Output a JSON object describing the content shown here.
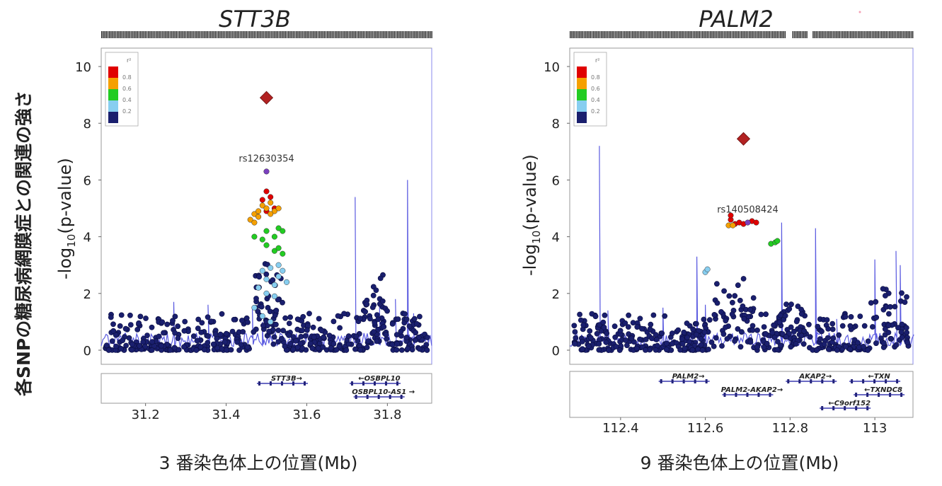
{
  "page_ylabel": "各SNPの糖尿病網膜症との関連の強さ",
  "chart_data": [
    {
      "type": "scatter",
      "title": "STT3B",
      "ylabel": "-log10(p-value)",
      "ylabel_sub_main": "-log",
      "ylabel_sub_sub": "10",
      "ylabel_sub_tail": "(p-value)",
      "xlabel": "3 番染色体上の位置(Mb)",
      "xlim": [
        31.09,
        31.91
      ],
      "ylim": [
        0,
        10.4
      ],
      "xticks": [
        31.2,
        31.4,
        31.6,
        31.8
      ],
      "xtick_labels": [
        "31.2",
        "31.4",
        "31.6",
        "31.8"
      ],
      "yticks": [
        0,
        2,
        4,
        6,
        8,
        10
      ],
      "ytick_labels": [
        "0",
        "2",
        "4",
        "6",
        "8",
        "10"
      ],
      "lead_snp": {
        "label": "rs12630354",
        "x": 31.5,
        "y": 8.9
      },
      "annotated_point": {
        "x": 31.5,
        "y": 6.3
      },
      "legend": {
        "title": "r²",
        "labels": [
          "0.8",
          "0.6",
          "0.4",
          "0.2"
        ],
        "position": "top-left"
      },
      "ld_colors": {
        "lead": "#b22222",
        "r08": "#e00000",
        "r06": "#f5a000",
        "r04": "#22cc22",
        "r02": "#87cef0",
        "r00": "#1a1f6e"
      },
      "series": [
        {
          "ld": "r08",
          "points": [
            [
              31.5,
              5.6
            ],
            [
              31.51,
              5.4
            ],
            [
              31.49,
              5.3
            ],
            [
              31.52,
              5.0
            ],
            [
              31.5,
              4.9
            ]
          ]
        },
        {
          "ld": "r06",
          "points": [
            [
              31.47,
              4.8
            ],
            [
              31.48,
              4.9
            ],
            [
              31.49,
              5.1
            ],
            [
              31.5,
              5.0
            ],
            [
              31.51,
              5.2
            ],
            [
              31.52,
              4.9
            ],
            [
              31.46,
              4.6
            ],
            [
              31.47,
              4.5
            ],
            [
              31.48,
              4.7
            ],
            [
              31.53,
              5.0
            ],
            [
              31.51,
              4.8
            ]
          ]
        },
        {
          "ld": "r04",
          "points": [
            [
              31.5,
              4.2
            ],
            [
              31.52,
              4.0
            ],
            [
              31.53,
              4.3
            ],
            [
              31.54,
              4.2
            ],
            [
              31.52,
              3.5
            ],
            [
              31.53,
              3.6
            ],
            [
              31.54,
              3.4
            ],
            [
              31.5,
              3.7
            ],
            [
              31.49,
              3.9
            ],
            [
              31.47,
              4.0
            ]
          ]
        },
        {
          "ld": "r02",
          "points": [
            [
              31.49,
              2.8
            ],
            [
              31.5,
              2.5
            ],
            [
              31.51,
              2.9
            ],
            [
              31.52,
              2.3
            ],
            [
              31.53,
              3.0
            ],
            [
              31.54,
              2.8
            ],
            [
              31.48,
              2.2
            ],
            [
              31.5,
              2.0
            ],
            [
              31.52,
              1.9
            ],
            [
              31.47,
              1.5
            ],
            [
              31.49,
              1.2
            ],
            [
              31.51,
              1.0
            ],
            [
              31.53,
              2.6
            ],
            [
              31.55,
              2.4
            ]
          ]
        }
      ],
      "recombination_peaks": [
        [
          31.27,
          1.7
        ],
        [
          31.355,
          1.6
        ],
        [
          31.465,
          1.5
        ],
        [
          31.49,
          1.0
        ],
        [
          31.72,
          5.4
        ],
        [
          31.78,
          1.9
        ],
        [
          31.82,
          1.8
        ],
        [
          31.85,
          6.0
        ],
        [
          31.865,
          1.3
        ]
      ]
    },
    {
      "type": "scatter",
      "title": "PALM2",
      "ylabel": "-log10(p-value)",
      "ylabel_sub_main": "-log",
      "ylabel_sub_sub": "10",
      "ylabel_sub_tail": "(p-value)",
      "xlabel": "9 番染色体上の位置(Mb)",
      "xlim": [
        112.28,
        113.09
      ],
      "ylim": [
        0,
        10.4
      ],
      "xticks": [
        112.4,
        112.6,
        112.8,
        113.0
      ],
      "xtick_labels": [
        "112.4",
        "112.6",
        "112.8",
        "113"
      ],
      "yticks": [
        0,
        2,
        4,
        6,
        8,
        10
      ],
      "ytick_labels": [
        "0",
        "2",
        "4",
        "6",
        "8",
        "10"
      ],
      "lead_snp": {
        "label": "rs140508424",
        "x": 112.69,
        "y": 7.45
      },
      "annotated_point": {
        "x": 112.7,
        "y": 4.5
      },
      "legend": {
        "title": "r²",
        "labels": [
          "0.8",
          "0.6",
          "0.4",
          "0.2"
        ],
        "position": "top-left"
      },
      "ld_colors": {
        "lead": "#b22222",
        "r08": "#e00000",
        "r06": "#f5a000",
        "r04": "#22cc22",
        "r02": "#87cef0",
        "r00": "#1a1f6e"
      },
      "series": [
        {
          "ld": "r08",
          "points": [
            [
              112.66,
              4.6
            ],
            [
              112.67,
              4.45
            ],
            [
              112.68,
              4.5
            ],
            [
              112.69,
              4.45
            ],
            [
              112.71,
              4.55
            ],
            [
              112.72,
              4.5
            ],
            [
              112.66,
              4.75
            ]
          ]
        },
        {
          "ld": "r06",
          "points": [
            [
              112.655,
              4.4
            ],
            [
              112.665,
              4.4
            ]
          ]
        },
        {
          "ld": "r04",
          "points": [
            [
              112.755,
              3.75
            ],
            [
              112.765,
              3.8
            ],
            [
              112.77,
              3.85
            ]
          ]
        },
        {
          "ld": "r02",
          "points": [
            [
              112.6,
              2.75
            ],
            [
              112.605,
              2.85
            ]
          ]
        }
      ],
      "recombination_peaks": [
        [
          112.35,
          7.2
        ],
        [
          112.37,
          1.4
        ],
        [
          112.5,
          1.5
        ],
        [
          112.58,
          3.3
        ],
        [
          112.6,
          1.6
        ],
        [
          112.78,
          4.5
        ],
        [
          112.86,
          4.3
        ],
        [
          112.91,
          1.1
        ],
        [
          113.0,
          3.2
        ],
        [
          113.05,
          3.5
        ],
        [
          113.06,
          3.0
        ]
      ]
    }
  ],
  "genes": [
    [
      {
        "label": "STT3B→",
        "x": 31.55,
        "row": 0
      },
      {
        "label": "←OSBPL10",
        "x": 31.78,
        "row": 0
      },
      {
        "label": "OSBPL10-AS1 →",
        "x": 31.79,
        "row": 1
      }
    ],
    [
      {
        "label": "PALM2→",
        "x": 112.56,
        "row": 0
      },
      {
        "label": "AKAP2→",
        "x": 112.86,
        "row": 0
      },
      {
        "label": "←TXN",
        "x": 113.01,
        "row": 0
      },
      {
        "label": "PALM2-AKAP2→",
        "x": 112.71,
        "row": 1
      },
      {
        "label": "←TXNDC8",
        "x": 113.02,
        "row": 1
      },
      {
        "label": "←C9orf152",
        "x": 112.94,
        "row": 2
      }
    ]
  ]
}
